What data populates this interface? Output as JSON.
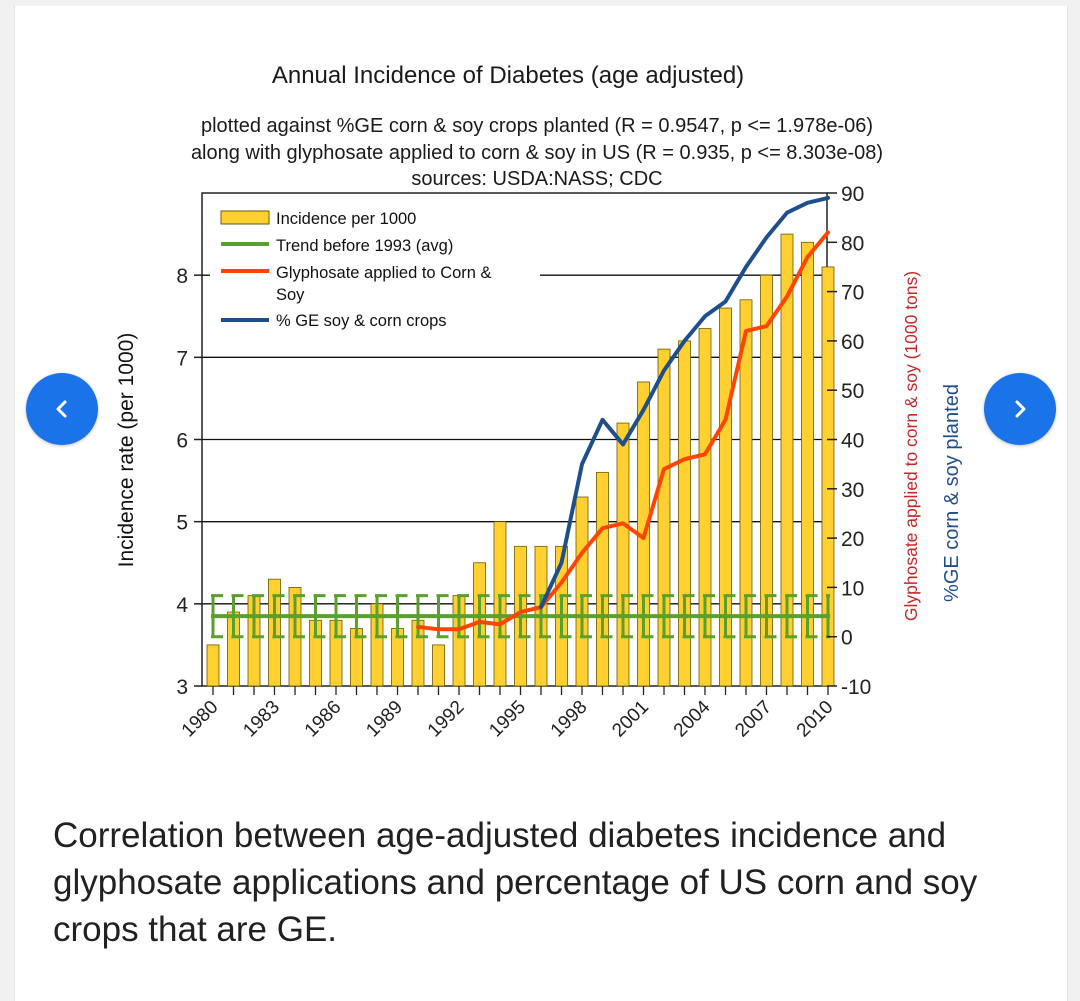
{
  "chart_data": {
    "type": "bar+line",
    "title": "Annual Incidence of Diabetes (age adjusted)",
    "subtitle_lines": [
      "plotted against %GE corn & soy crops planted (R = 0.9547, p <= 1.978e-06)",
      "along with glyphosate applied to corn & soy in US (R = 0.935, p <= 8.303e-08)",
      "sources: USDA:NASS; CDC"
    ],
    "ylabel_left": "Incidence rate (per 1000)",
    "ylabel_right_1": "Glyphosate applied to corn & soy (1000 tons)",
    "ylabel_right_2": "%GE corn & soy planted",
    "ylim_left": [
      3,
      9
    ],
    "ylim_right": [
      -10,
      90
    ],
    "left_ticks": [
      "3",
      "4",
      "5",
      "6",
      "7",
      "8"
    ],
    "right_ticks": [
      "-10",
      "0",
      "10",
      "20",
      "30",
      "40",
      "50",
      "60",
      "70",
      "80",
      "90"
    ],
    "x_tick_labels": [
      "1980",
      "1983",
      "1986",
      "1989",
      "1992",
      "1995",
      "1998",
      "2001",
      "2004",
      "2007",
      "2010"
    ],
    "years": [
      1980,
      1981,
      1982,
      1983,
      1984,
      1985,
      1986,
      1987,
      1988,
      1989,
      1990,
      1991,
      1992,
      1993,
      1994,
      1995,
      1996,
      1997,
      1998,
      1999,
      2000,
      2001,
      2002,
      2003,
      2004,
      2005,
      2006,
      2007,
      2008,
      2009,
      2010
    ],
    "legend": [
      {
        "label": "Incidence per 1000",
        "kind": "bar"
      },
      {
        "label": "Trend before 1993 (avg)",
        "kind": "line-green"
      },
      {
        "label": "Glyphosate applied to Corn & Soy",
        "kind": "line-red"
      },
      {
        "label": "% GE soy & corn crops",
        "kind": "line-blue"
      }
    ],
    "series": [
      {
        "name": "Incidence per 1000",
        "axis": "left",
        "values": [
          3.5,
          3.9,
          4.1,
          4.3,
          4.2,
          3.8,
          3.8,
          3.7,
          4.0,
          3.7,
          3.8,
          3.5,
          4.1,
          4.5,
          5.0,
          4.7,
          4.7,
          4.7,
          5.3,
          5.6,
          6.2,
          6.7,
          7.1,
          7.2,
          7.35,
          7.6,
          7.7,
          8.0,
          8.5,
          8.4,
          8.1
        ]
      },
      {
        "name": "Trend before 1993 (avg)",
        "axis": "left",
        "value": 3.85,
        "error": 0.25
      },
      {
        "name": "Glyphosate applied to Corn & Soy",
        "axis": "right",
        "start_year": 1990,
        "values": [
          2,
          1.5,
          1.5,
          3,
          2.5,
          5,
          6,
          11,
          17,
          22,
          23,
          20,
          34,
          36,
          37,
          44,
          62,
          63,
          69,
          77,
          82
        ]
      },
      {
        "name": "% GE soy & corn crops",
        "axis": "right",
        "start_year": 1996,
        "values": [
          6,
          15,
          35,
          44,
          39,
          46,
          54,
          60,
          65,
          68,
          75,
          81,
          86,
          88,
          89
        ]
      }
    ]
  },
  "colors": {
    "bar_fill": "#ffd02f",
    "bar_stroke": "#6b5a00",
    "trend": "#5aa02c",
    "glyphosate": "#ff4500",
    "ge": "#1f4e8c",
    "axis_right_glyphosate_label": "#c62828",
    "axis_right_ge_label": "#1f4e8c",
    "nav": "#1a73e8"
  },
  "nav": {
    "prev_icon": "chevron-left-icon",
    "next_icon": "chevron-right-icon"
  },
  "caption": "Correlation between age-adjusted diabetes incidence and glyphosate applications and percentage of US corn and soy crops that are GE."
}
